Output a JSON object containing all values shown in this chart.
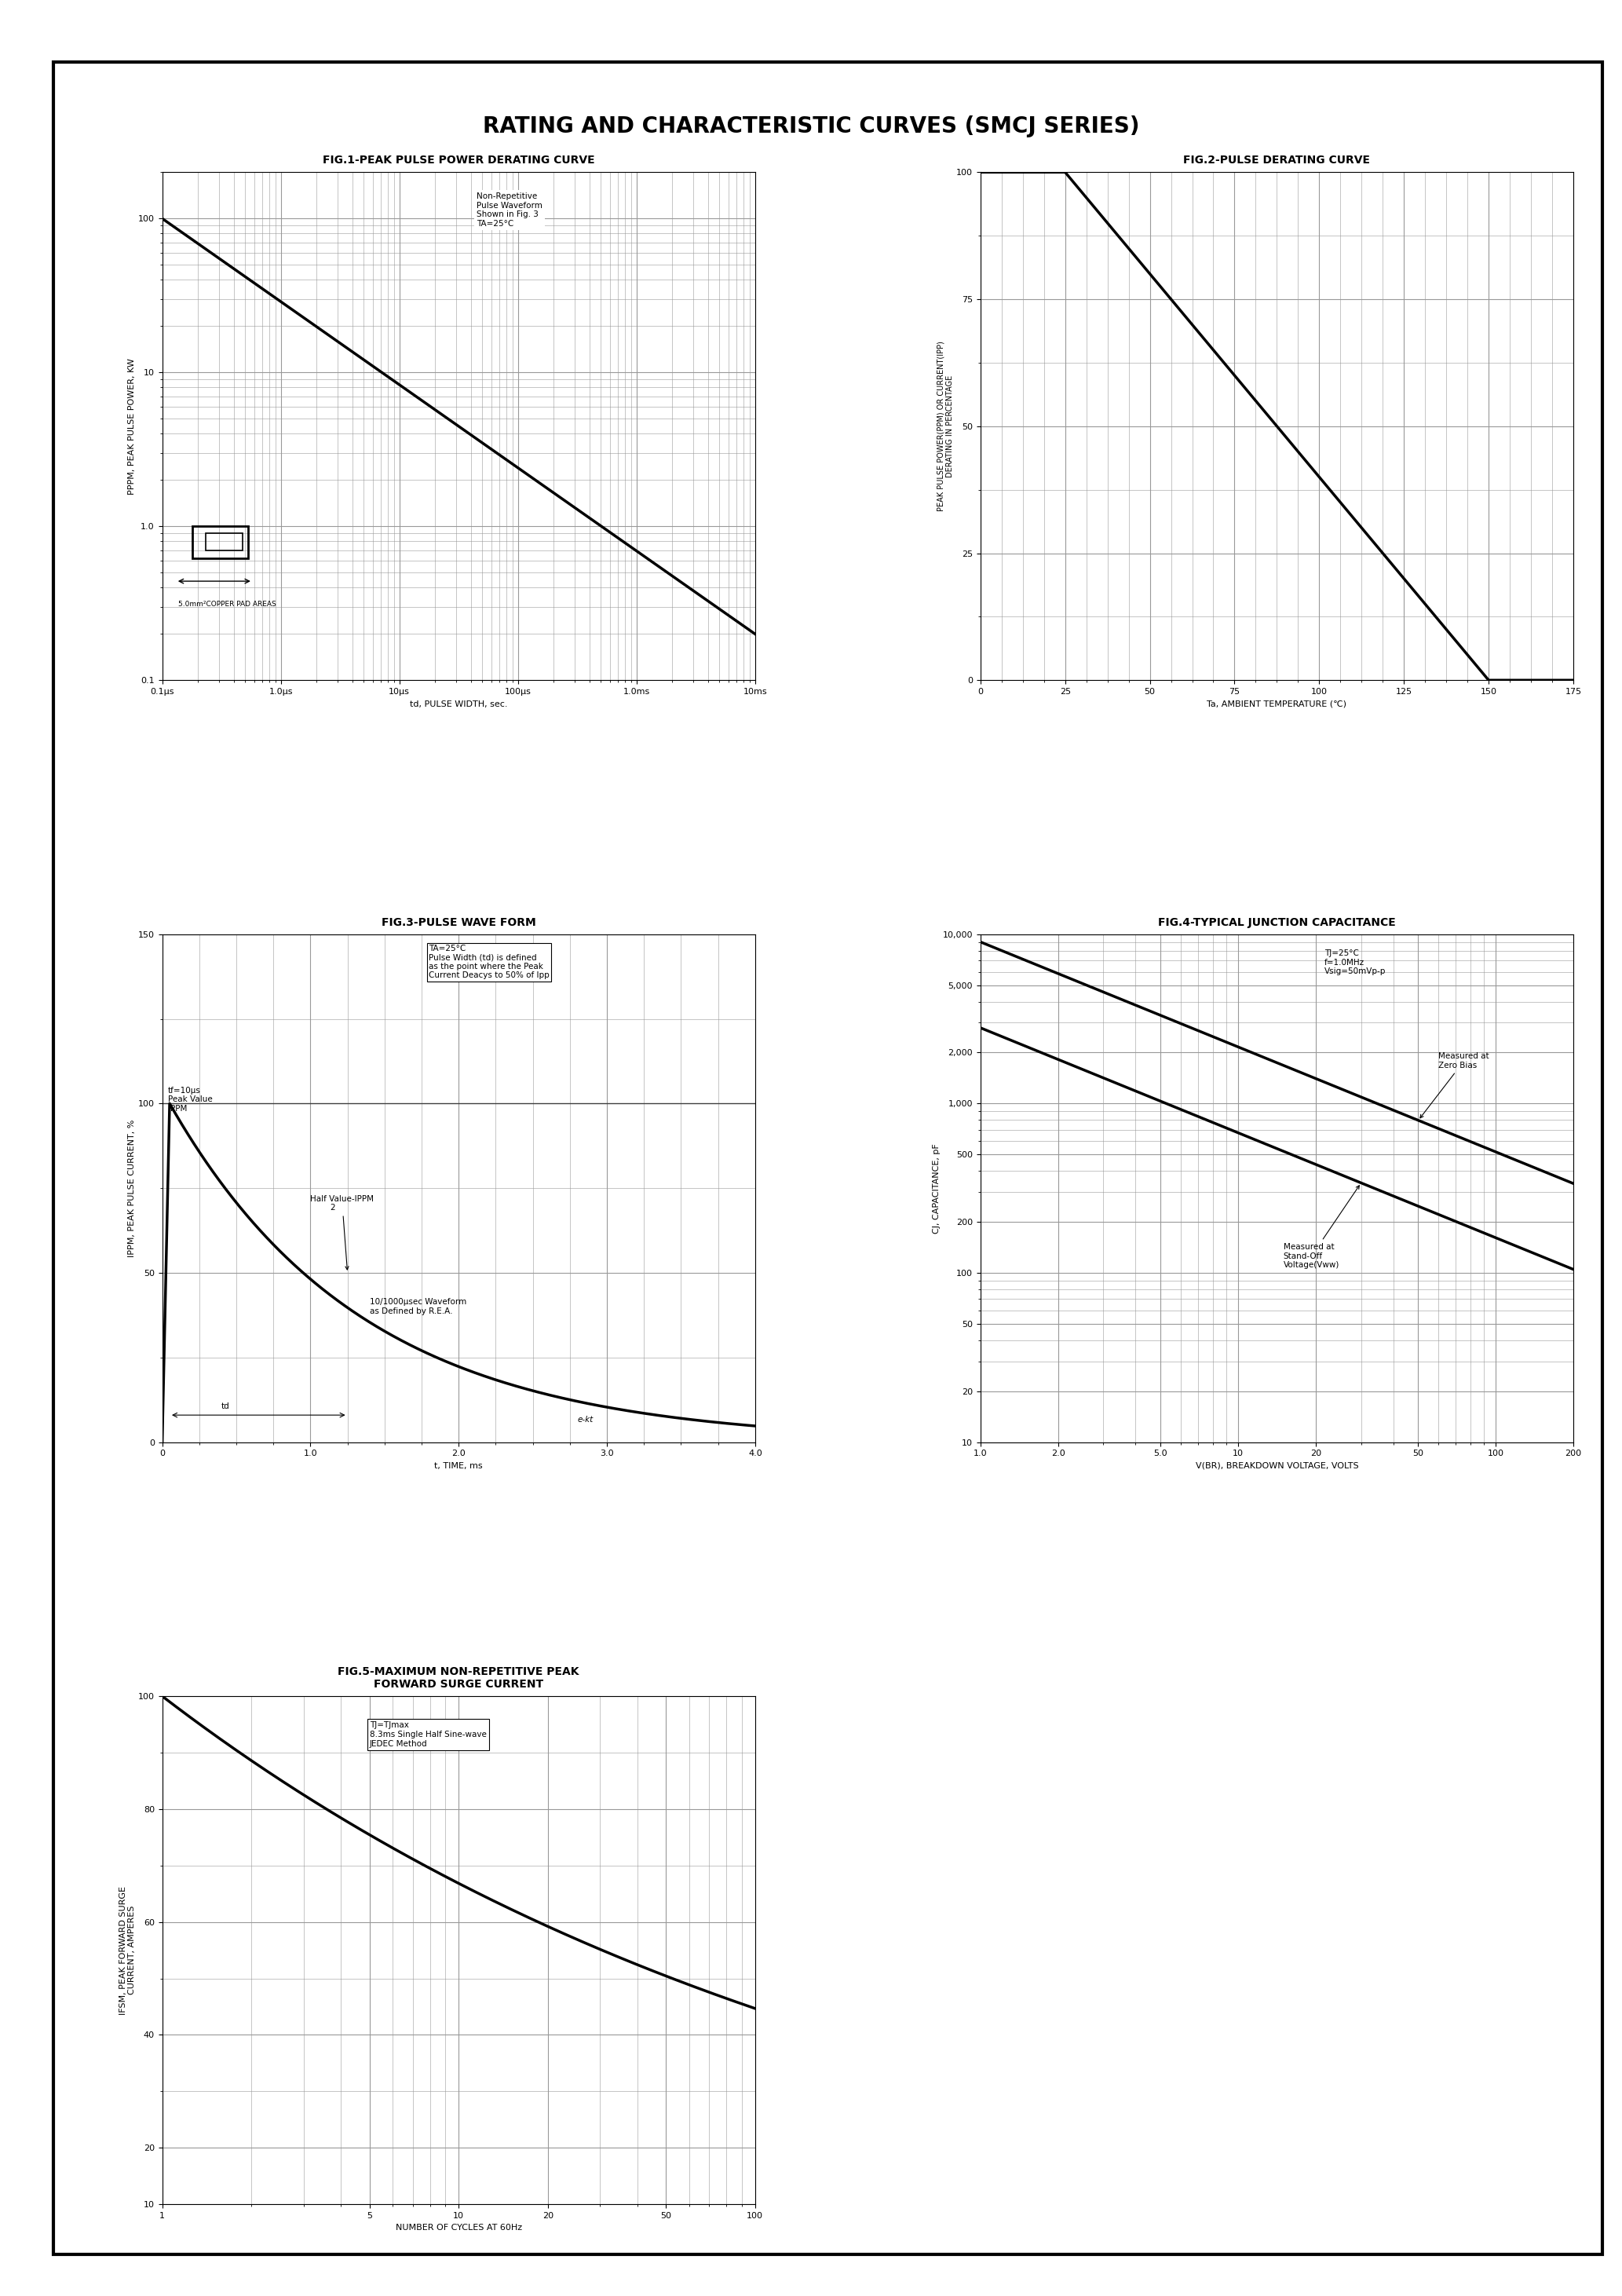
{
  "title": "RATING AND CHARACTERISTIC CURVES (SMCJ SERIES)",
  "fig1_title": "FIG.1-PEAK PULSE POWER DERATING CURVE",
  "fig2_title": "FIG.2-PULSE DERATING CURVE",
  "fig3_title": "FIG.3-PULSE WAVE FORM",
  "fig4_title": "FIG.4-TYPICAL JUNCTION CAPACITANCE",
  "fig5_title": "FIG.5-MAXIMUM NON-REPETITIVE PEAK\nFORWARD SURGE CURRENT",
  "fig1_xlabel": "td, PULSE WIDTH, sec.",
  "fig1_ylabel": "PPPM, PEAK PULSE POWER, KW",
  "fig2_xlabel": "Ta, AMBIENT TEMPERATURE (℃)",
  "fig2_ylabel": "PEAK PULSE POWER(PPM) OR CURRENT(IPP)\nDERATING IN PERCENTAGE",
  "fig3_xlabel": "t, TIME, ms",
  "fig3_ylabel": "IPPM, PEAK PULSE CURRENT, %",
  "fig4_xlabel": "V(BR), BREAKDOWN VOLTAGE, VOLTS",
  "fig4_ylabel": "CJ, CAPACITANCE, pF",
  "fig5_xlabel": "NUMBER OF CYCLES AT 60Hz",
  "fig5_ylabel": "IFSM, PEAK FORWARD SURGE\nCURRENT, AMPERES",
  "bg_color": "#ffffff",
  "line_color": "#000000",
  "border_color": "#000000",
  "grid_color": "#999999",
  "fig1_note": "Non-Repetitive\nPulse Waveform\nShown in Fig. 3\nTA=25°C",
  "fig3_note": "TA=25°C\nPulse Width (td) is defined\nas the point where the Peak\nCurrent Deacys to 50% of Ipp",
  "fig3_label1": "tf=10μs\nPeak Value\nIPPM",
  "fig3_label2": "Half Value-IPPM\n        2",
  "fig3_label3": "10/1000μsec Waveform\nas Defined by R.E.A.",
  "fig4_note": "TJ=25°C\nf=1.0MHz\nVsig=50mVp-p",
  "fig4_label1": "Measured at\nZero Bias",
  "fig4_label2": "Measured at\nStand-Off\nVoltage(Vww)",
  "fig5_note": "TJ=TJmax\n8.3ms Single Half Sine-wave\nJEDEC Method",
  "copper_label": "5.0mm²COPPER PAD AREAS"
}
